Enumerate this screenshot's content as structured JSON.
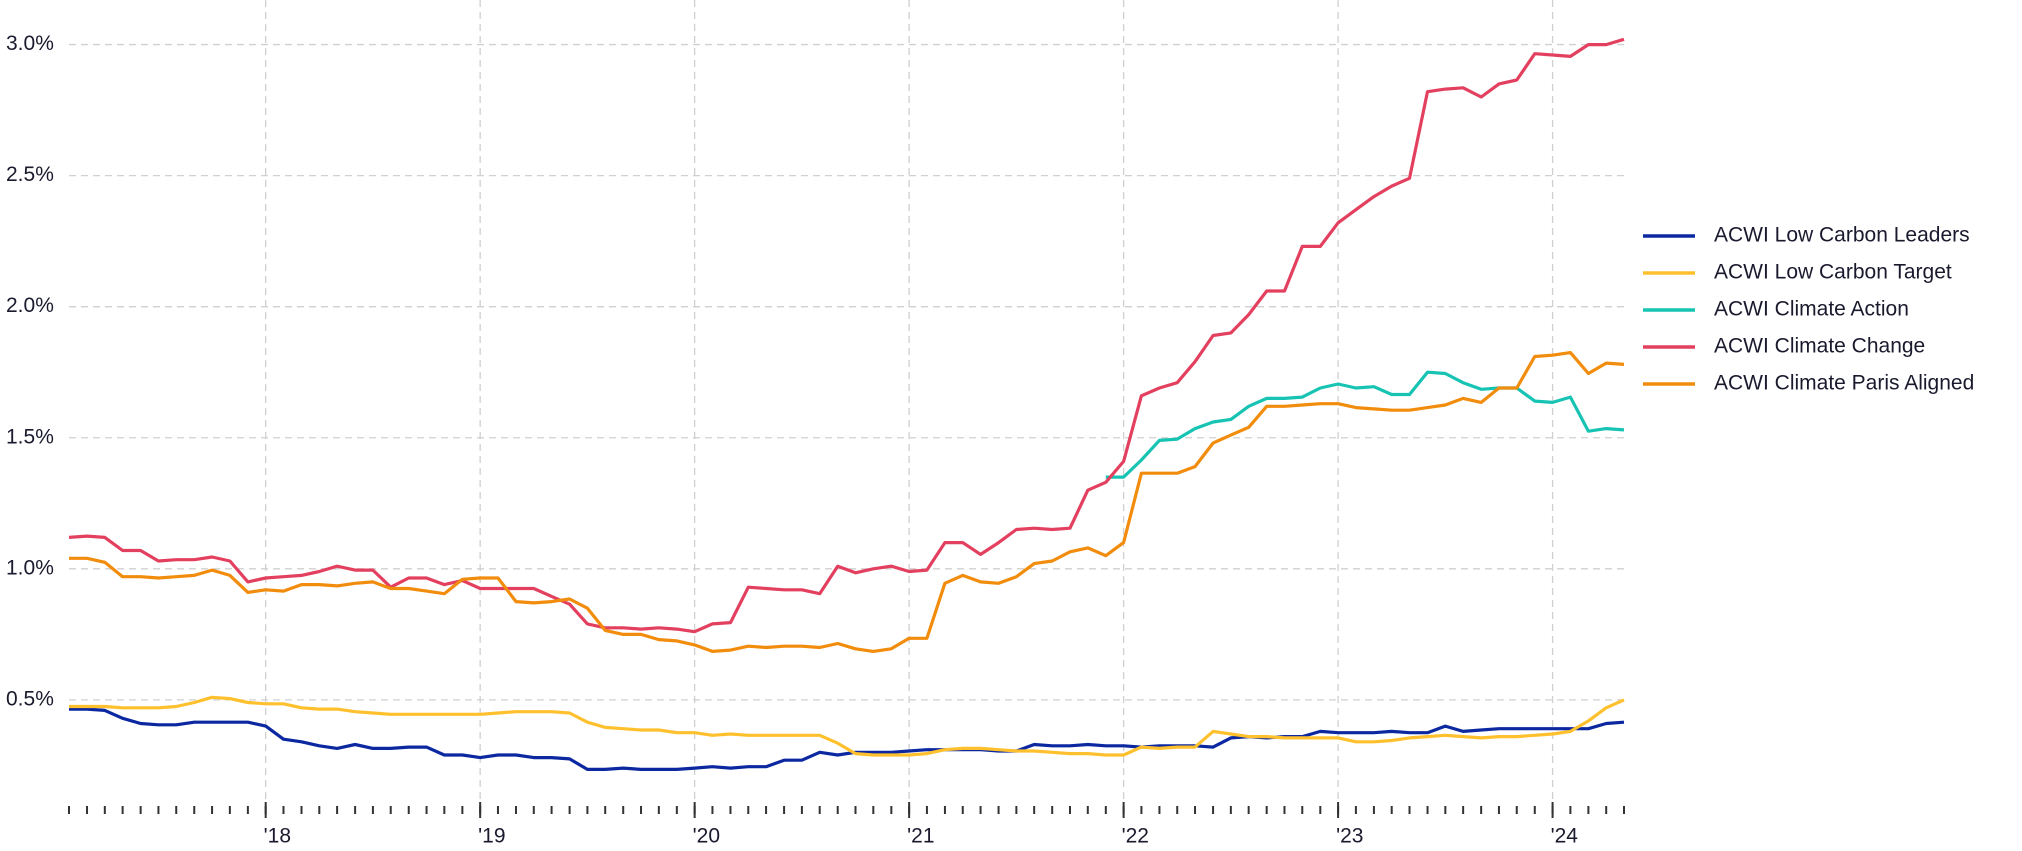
{
  "chart_data": {
    "type": "line",
    "x": [
      2017.083,
      2017.167,
      2017.25,
      2017.333,
      2017.417,
      2017.5,
      2017.583,
      2017.667,
      2017.75,
      2017.833,
      2017.917,
      2018,
      2018.083,
      2018.167,
      2018.25,
      2018.333,
      2018.417,
      2018.5,
      2018.583,
      2018.667,
      2018.75,
      2018.833,
      2018.917,
      2019,
      2019.083,
      2019.167,
      2019.25,
      2019.333,
      2019.417,
      2019.5,
      2019.583,
      2019.667,
      2019.75,
      2019.833,
      2019.917,
      2020,
      2020.083,
      2020.167,
      2020.25,
      2020.333,
      2020.417,
      2020.5,
      2020.583,
      2020.667,
      2020.75,
      2020.833,
      2020.917,
      2021,
      2021.083,
      2021.167,
      2021.25,
      2021.333,
      2021.417,
      2021.5,
      2021.583,
      2021.667,
      2021.75,
      2021.833,
      2021.917,
      2022,
      2022.083,
      2022.167,
      2022.25,
      2022.333,
      2022.417,
      2022.5,
      2022.583,
      2022.667,
      2022.75,
      2022.833,
      2022.917,
      2023,
      2023.083,
      2023.167,
      2023.25,
      2023.333,
      2023.417,
      2023.5,
      2023.583,
      2023.667,
      2023.75,
      2023.833,
      2023.917,
      2024,
      2024.083,
      2024.167,
      2024.25,
      2024.333
    ],
    "series": [
      {
        "name": "ACWI Low Carbon Leaders",
        "color": "#0b28a0",
        "values": [
          0.465,
          0.465,
          0.46,
          0.43,
          0.41,
          0.405,
          0.405,
          0.415,
          0.415,
          0.415,
          0.415,
          0.4,
          0.35,
          0.34,
          0.325,
          0.315,
          0.33,
          0.315,
          0.315,
          0.32,
          0.32,
          0.29,
          0.29,
          0.28,
          0.29,
          0.29,
          0.28,
          0.28,
          0.275,
          0.235,
          0.235,
          0.24,
          0.235,
          0.235,
          0.235,
          0.24,
          0.245,
          0.24,
          0.245,
          0.245,
          0.27,
          0.27,
          0.3,
          0.29,
          0.3,
          0.3,
          0.3,
          0.305,
          0.31,
          0.31,
          0.31,
          0.31,
          0.305,
          0.305,
          0.33,
          0.325,
          0.325,
          0.33,
          0.325,
          0.325,
          0.32,
          0.325,
          0.325,
          0.325,
          0.32,
          0.355,
          0.36,
          0.355,
          0.36,
          0.36,
          0.38,
          0.375,
          0.375,
          0.375,
          0.38,
          0.375,
          0.375,
          0.4,
          0.38,
          0.385,
          0.39,
          0.39,
          0.39,
          0.39,
          0.39,
          0.39,
          0.41,
          0.415
        ]
      },
      {
        "name": "ACWI Low Carbon Target",
        "color": "#ffc02e",
        "values": [
          0.475,
          0.475,
          0.475,
          0.47,
          0.47,
          0.47,
          0.475,
          0.49,
          0.51,
          0.505,
          0.49,
          0.485,
          0.485,
          0.47,
          0.465,
          0.465,
          0.455,
          0.45,
          0.445,
          0.445,
          0.445,
          0.445,
          0.445,
          0.445,
          0.45,
          0.455,
          0.455,
          0.455,
          0.45,
          0.415,
          0.395,
          0.39,
          0.385,
          0.385,
          0.375,
          0.375,
          0.365,
          0.37,
          0.365,
          0.365,
          0.365,
          0.365,
          0.365,
          0.335,
          0.295,
          0.29,
          0.29,
          0.29,
          0.295,
          0.31,
          0.315,
          0.315,
          0.31,
          0.305,
          0.305,
          0.3,
          0.295,
          0.295,
          0.29,
          0.29,
          0.32,
          0.315,
          0.32,
          0.32,
          0.38,
          0.37,
          0.36,
          0.36,
          0.355,
          0.355,
          0.355,
          0.355,
          0.34,
          0.34,
          0.345,
          0.355,
          0.36,
          0.365,
          0.36,
          0.355,
          0.36,
          0.36,
          0.365,
          0.37,
          0.38,
          0.42,
          0.47,
          0.5
        ]
      },
      {
        "name": "ACWI Climate Action",
        "color": "#17c3b2",
        "values": [
          null,
          null,
          null,
          null,
          null,
          null,
          null,
          null,
          null,
          null,
          null,
          null,
          null,
          null,
          null,
          null,
          null,
          null,
          null,
          null,
          null,
          null,
          null,
          null,
          null,
          null,
          null,
          null,
          null,
          null,
          null,
          null,
          null,
          null,
          null,
          null,
          null,
          null,
          null,
          null,
          null,
          null,
          null,
          null,
          null,
          null,
          null,
          null,
          null,
          null,
          null,
          null,
          null,
          null,
          null,
          null,
          null,
          null,
          1.35,
          1.35,
          1.415,
          1.49,
          1.495,
          1.535,
          1.56,
          1.57,
          1.62,
          1.65,
          1.65,
          1.655,
          1.69,
          1.705,
          1.69,
          1.695,
          1.665,
          1.665,
          1.75,
          1.745,
          1.71,
          1.685,
          1.69,
          1.69,
          1.64,
          1.635,
          1.655,
          1.525,
          1.535,
          1.53
        ]
      },
      {
        "name": "ACWI Climate Change",
        "color": "#e3405f",
        "values": [
          1.12,
          1.125,
          1.12,
          1.07,
          1.07,
          1.03,
          1.035,
          1.035,
          1.045,
          1.03,
          0.95,
          0.965,
          0.97,
          0.975,
          0.99,
          1.01,
          0.995,
          0.995,
          0.93,
          0.965,
          0.965,
          0.94,
          0.955,
          0.925,
          0.925,
          0.925,
          0.925,
          0.895,
          0.865,
          0.79,
          0.775,
          0.775,
          0.77,
          0.775,
          0.77,
          0.76,
          0.79,
          0.795,
          0.93,
          0.925,
          0.92,
          0.92,
          0.905,
          1.01,
          0.985,
          1.0,
          1.01,
          0.99,
          0.995,
          1.1,
          1.1,
          1.055,
          1.1,
          1.15,
          1.155,
          1.15,
          1.155,
          1.3,
          1.33,
          1.41,
          1.66,
          1.69,
          1.71,
          1.79,
          1.89,
          1.9,
          1.97,
          2.06,
          2.06,
          2.23,
          2.23,
          2.32,
          2.37,
          2.42,
          2.46,
          2.49,
          2.82,
          2.83,
          2.835,
          2.8,
          2.85,
          2.865,
          2.965,
          2.96,
          2.955,
          3.0,
          3.0,
          3.02
        ]
      },
      {
        "name": "ACWI Climate Paris Aligned",
        "color": "#f28c0c",
        "values": [
          1.04,
          1.04,
          1.025,
          0.97,
          0.97,
          0.965,
          0.97,
          0.975,
          0.995,
          0.975,
          0.91,
          0.92,
          0.915,
          0.94,
          0.94,
          0.935,
          0.945,
          0.95,
          0.925,
          0.925,
          0.915,
          0.905,
          0.96,
          0.965,
          0.965,
          0.875,
          0.87,
          0.875,
          0.885,
          0.85,
          0.765,
          0.75,
          0.75,
          0.73,
          0.725,
          0.71,
          0.685,
          0.69,
          0.705,
          0.7,
          0.705,
          0.705,
          0.7,
          0.715,
          0.695,
          0.685,
          0.695,
          0.735,
          0.735,
          0.945,
          0.975,
          0.95,
          0.945,
          0.97,
          1.02,
          1.03,
          1.065,
          1.08,
          1.05,
          1.1,
          1.365,
          1.365,
          1.365,
          1.39,
          1.48,
          1.51,
          1.54,
          1.62,
          1.62,
          1.625,
          1.63,
          1.63,
          1.615,
          1.61,
          1.605,
          1.605,
          1.615,
          1.625,
          1.65,
          1.635,
          1.69,
          1.69,
          1.81,
          1.815,
          1.825,
          1.745,
          1.785,
          1.78
        ]
      }
    ],
    "xlim": [
      2017.083,
      2024.333
    ],
    "xticks": [
      {
        "value": 2018,
        "label": "'18"
      },
      {
        "value": 2019,
        "label": "'19"
      },
      {
        "value": 2020,
        "label": "'20"
      },
      {
        "value": 2021,
        "label": "'21"
      },
      {
        "value": 2022,
        "label": "'22"
      },
      {
        "value": 2023,
        "label": "'23"
      },
      {
        "value": 2024,
        "label": "'24"
      }
    ],
    "ylim": [
      0.08,
      3.17
    ],
    "yticks": [
      {
        "value": 0.5,
        "label": "0.5%"
      },
      {
        "value": 1.0,
        "label": "1.0%"
      },
      {
        "value": 1.5,
        "label": "1.5%"
      },
      {
        "value": 2.0,
        "label": "2.0%"
      },
      {
        "value": 2.5,
        "label": "2.5%"
      },
      {
        "value": 3.0,
        "label": "3.0%"
      }
    ],
    "grid": true,
    "legend": "right"
  }
}
